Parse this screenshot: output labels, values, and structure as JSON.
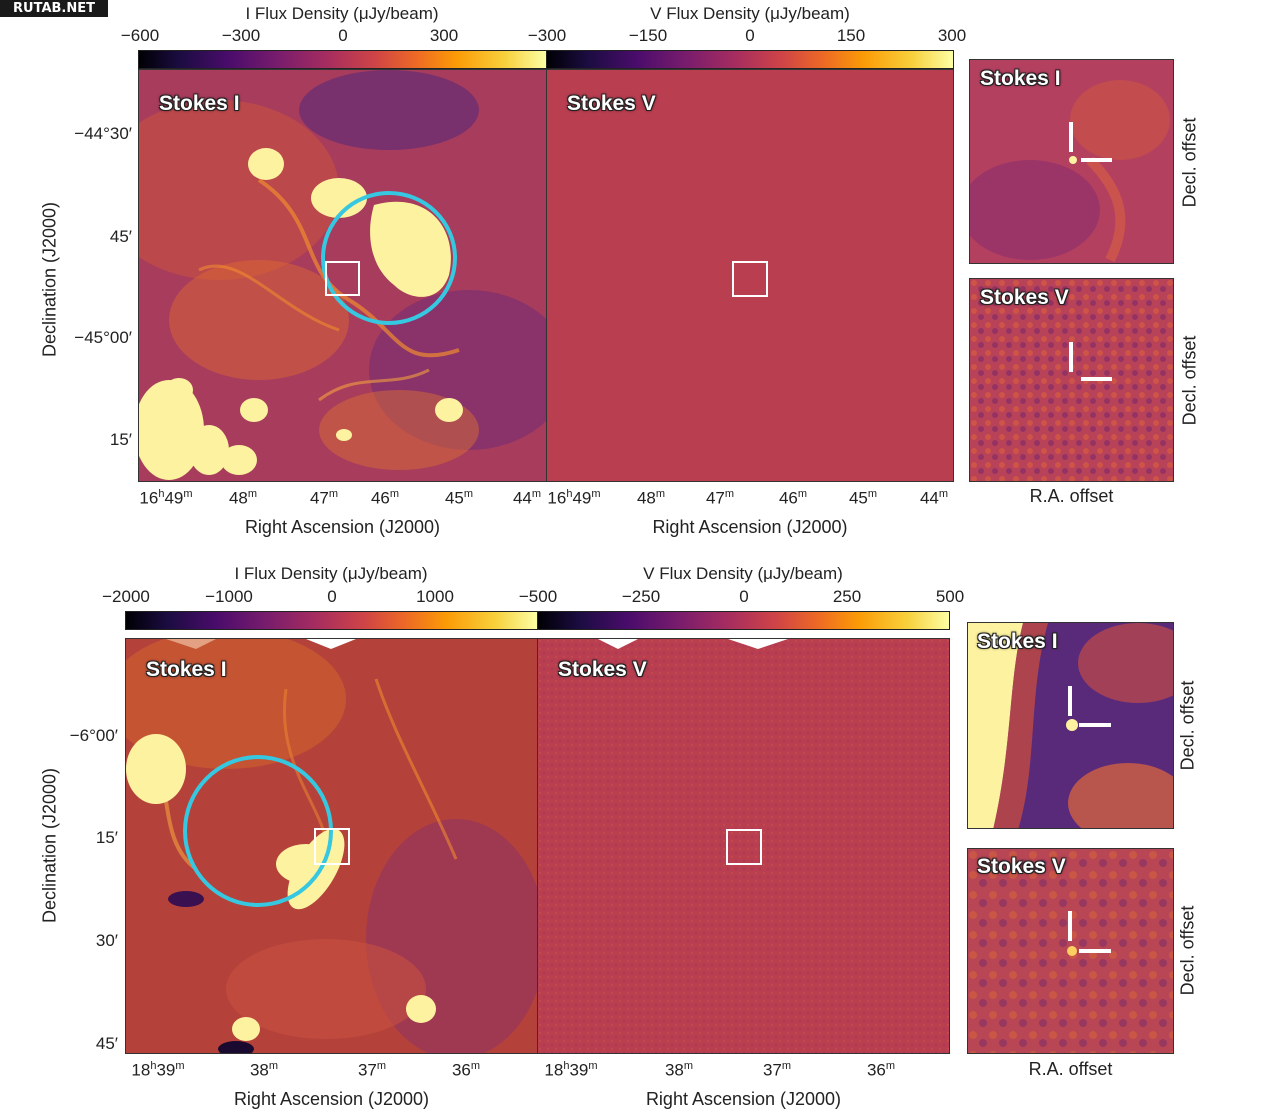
{
  "watermark": "RUTAB.NET",
  "top": {
    "cbar_i": {
      "title": "I Flux Density (μJy/beam)",
      "ticks": [
        "−600",
        "−300",
        "0",
        "300"
      ]
    },
    "cbar_v": {
      "title": "V Flux Density (μJy/beam)",
      "ticks": [
        "−300",
        "−150",
        "0",
        "150",
        "300"
      ]
    },
    "panel_i_label": "Stokes I",
    "panel_v_label": "Stokes V",
    "y_title": "Declination (J2000)",
    "y_ticks": [
      "−44°30′",
      "45′",
      "−45°00′",
      "15′"
    ],
    "x_title": "Right Ascension (J2000)",
    "x_ticks": [
      {
        "h": "16",
        "m": "49"
      },
      {
        "m": "48"
      },
      {
        "m": "47"
      },
      {
        "m": "46"
      },
      {
        "m": "45"
      },
      {
        "m": "44"
      }
    ],
    "inset_i_label": "Stokes I",
    "inset_v_label": "Stokes V",
    "inset_y_title": "Decl. offset",
    "inset_x_title": "R.A. offset"
  },
  "bottom": {
    "cbar_i": {
      "title": "I Flux Density (μJy/beam)",
      "ticks": [
        "−2000",
        "−1000",
        "0",
        "1000"
      ]
    },
    "cbar_v": {
      "title": "V Flux Density (μJy/beam)",
      "ticks": [
        "−500",
        "−250",
        "0",
        "250",
        "500"
      ]
    },
    "panel_i_label": "Stokes I",
    "panel_v_label": "Stokes V",
    "y_title": "Declination (J2000)",
    "y_ticks": [
      "−6°00′",
      "15′",
      "30′",
      "45′"
    ],
    "x_title": "Right Ascension (J2000)",
    "x_ticks": [
      {
        "h": "18",
        "m": "39"
      },
      {
        "m": "38"
      },
      {
        "m": "37"
      },
      {
        "m": "36"
      }
    ],
    "inset_i_label": "Stokes I",
    "inset_v_label": "Stokes V",
    "inset_y_title": "Decl. offset",
    "inset_x_title": "R.A. offset"
  },
  "colors": {
    "cyan_circle": "#35c8e0",
    "map_v_bg": "#b83e50",
    "box": "#ffffff"
  }
}
